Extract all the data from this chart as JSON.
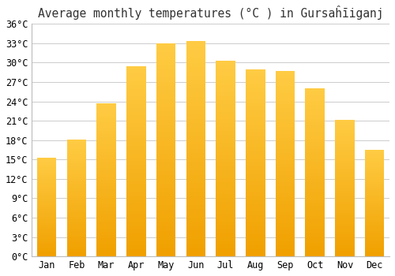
{
  "title": "Average monthly temperatures (°C ) in Gursaĥīiganj",
  "months": [
    "Jan",
    "Feb",
    "Mar",
    "Apr",
    "May",
    "Jun",
    "Jul",
    "Aug",
    "Sep",
    "Oct",
    "Nov",
    "Dec"
  ],
  "values": [
    15.3,
    18.1,
    23.7,
    29.5,
    33.0,
    33.3,
    30.3,
    29.0,
    28.7,
    26.0,
    21.2,
    16.5
  ],
  "bar_color_bottom": "#F0A000",
  "bar_color_top": "#FFCC44",
  "ylim": [
    0,
    36
  ],
  "ytick_step": 3,
  "background_color": "#ffffff",
  "plot_background": "#ffffff",
  "grid_color": "#cccccc",
  "title_fontsize": 10.5,
  "tick_fontsize": 8.5,
  "bar_width": 0.65
}
